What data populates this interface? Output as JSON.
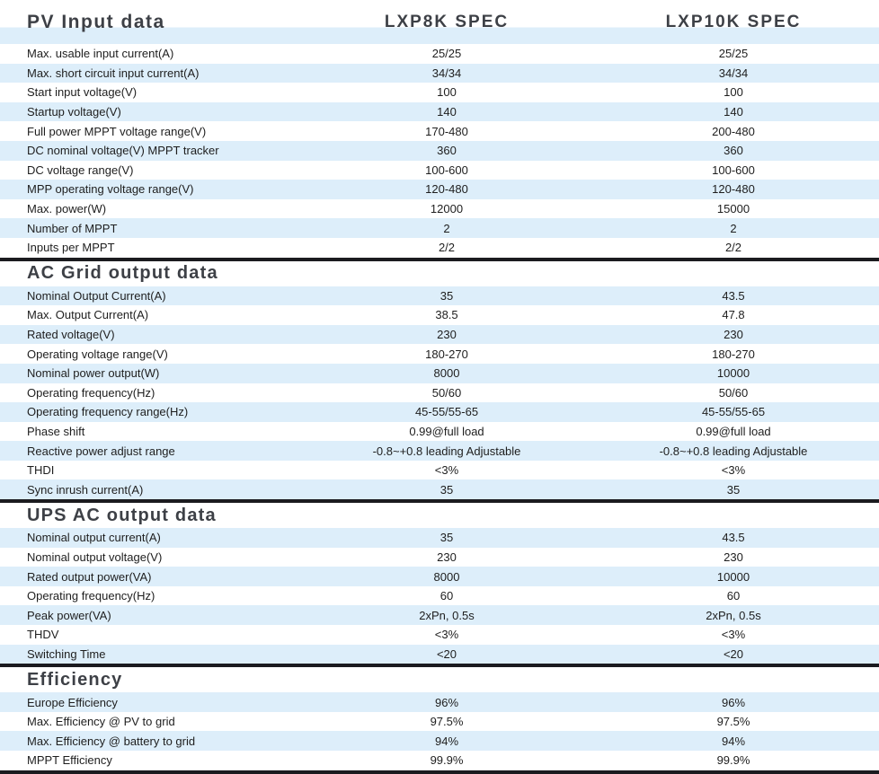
{
  "colors": {
    "stripe_blue": "#ddeefa",
    "divider": "#1b1b1f",
    "header_text": "#3d4046",
    "body_text": "#1e1e1e"
  },
  "header": {
    "section_title": "PV Input data",
    "col1": "LXP8K SPEC",
    "col2": "LXP10K SPEC"
  },
  "table": {
    "sections": [
      {
        "title": "PV Input data",
        "title_in_header": true,
        "first_row_shade": "white",
        "rows": [
          [
            "Max. usable input current(A)",
            "25/25",
            "25/25"
          ],
          [
            "Max. short circuit input current(A)",
            "34/34",
            "34/34"
          ],
          [
            "Start input voltage(V)",
            "100",
            "100"
          ],
          [
            "Startup voltage(V)",
            "140",
            "140"
          ],
          [
            "Full power MPPT voltage range(V)",
            "170-480",
            "200-480"
          ],
          [
            "DC nominal voltage(V) MPPT tracker",
            "360",
            "360"
          ],
          [
            "DC voltage range(V)",
            "100-600",
            "100-600"
          ],
          [
            "MPP operating voltage range(V)",
            "120-480",
            "120-480"
          ],
          [
            "Max. power(W)",
            "12000",
            "15000"
          ],
          [
            "Number of MPPT",
            "2",
            "2"
          ],
          [
            "Inputs per MPPT",
            "2/2",
            "2/2"
          ]
        ]
      },
      {
        "title": "AC Grid output data",
        "title_in_header": false,
        "first_row_shade": "blue",
        "rows": [
          [
            "Nominal Output Current(A)",
            "35",
            "43.5"
          ],
          [
            "Max. Output Current(A)",
            "38.5",
            "47.8"
          ],
          [
            "Rated voltage(V)",
            "230",
            "230"
          ],
          [
            "Operating voltage range(V)",
            "180-270",
            "180-270"
          ],
          [
            "Nominal power output(W)",
            "8000",
            "10000"
          ],
          [
            "Operating frequency(Hz)",
            "50/60",
            "50/60"
          ],
          [
            "Operating frequency range(Hz)",
            "45-55/55-65",
            "45-55/55-65"
          ],
          [
            "Phase shift",
            "0.99@full load",
            "0.99@full load"
          ],
          [
            "Reactive power adjust range",
            "-0.8~+0.8 leading Adjustable",
            "-0.8~+0.8 leading Adjustable"
          ],
          [
            "THDI",
            "<3%",
            "<3%"
          ],
          [
            "Sync inrush current(A)",
            "35",
            "35"
          ]
        ]
      },
      {
        "title": "UPS AC output data",
        "title_in_header": false,
        "first_row_shade": "blue",
        "rows": [
          [
            "Nominal output current(A)",
            "35",
            "43.5"
          ],
          [
            "Nominal output voltage(V)",
            "230",
            "230"
          ],
          [
            "Rated output power(VA)",
            "8000",
            "10000"
          ],
          [
            "Operating frequency(Hz)",
            "60",
            "60"
          ],
          [
            "Peak power(VA)",
            "2xPn, 0.5s",
            "2xPn, 0.5s"
          ],
          [
            "THDV",
            "<3%",
            "<3%"
          ],
          [
            "Switching Time",
            "<20",
            "<20"
          ]
        ]
      },
      {
        "title": "Efficiency",
        "title_in_header": false,
        "first_row_shade": "blue",
        "rows": [
          [
            "Europe Efficiency",
            "96%",
            "96%"
          ],
          [
            "Max. Efficiency @ PV to grid",
            "97.5%",
            "97.5%"
          ],
          [
            "Max. Efficiency @ battery to grid",
            "94%",
            "94%"
          ],
          [
            "MPPT Efficiency",
            "99.9%",
            "99.9%"
          ]
        ]
      }
    ]
  }
}
